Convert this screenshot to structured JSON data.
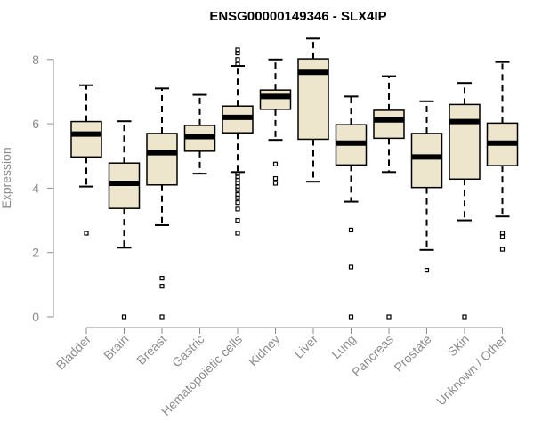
{
  "chart_data": {
    "type": "boxplot",
    "title": "ENSG00000149346 - SLX4IP",
    "ylabel": "Expression",
    "xlabel": "",
    "ylim": [
      0,
      8.8
    ],
    "yticks": [
      0,
      2,
      4,
      6,
      8
    ],
    "grid": false,
    "colors": {
      "box_fill": "#ede6cd",
      "stroke": "#000000",
      "axis": "#8c8c8c"
    },
    "categories": [
      "Bladder",
      "Brain",
      "Breast",
      "Gastric",
      "Hematopoietic cells",
      "Kidney",
      "Liver",
      "Lung",
      "Pancreas",
      "Prostate",
      "Skin",
      "Unknown / Other"
    ],
    "boxes": [
      {
        "whisker_low": 4.05,
        "q1": 4.97,
        "median": 5.68,
        "q3": 6.07,
        "whisker_high": 7.2,
        "outliers": [
          2.6
        ]
      },
      {
        "whisker_low": 2.15,
        "q1": 3.37,
        "median": 4.15,
        "q3": 4.78,
        "whisker_high": 6.08,
        "outliers": [
          0
        ]
      },
      {
        "whisker_low": 2.85,
        "q1": 4.1,
        "median": 5.1,
        "q3": 5.7,
        "whisker_high": 7.1,
        "outliers": [
          1.2,
          0.95,
          0
        ]
      },
      {
        "whisker_low": 4.45,
        "q1": 5.15,
        "median": 5.6,
        "q3": 5.95,
        "whisker_high": 6.9,
        "outliers": []
      },
      {
        "whisker_low": 4.5,
        "q1": 5.72,
        "median": 6.2,
        "q3": 6.55,
        "whisker_high": 7.8,
        "outliers": [
          8.3,
          8.2,
          8.0,
          7.85,
          4.45,
          4.35,
          4.25,
          4.15,
          4.05,
          3.95,
          3.8,
          3.7,
          3.55,
          3.35,
          3.0,
          2.6
        ]
      },
      {
        "whisker_low": 5.5,
        "q1": 6.45,
        "median": 6.85,
        "q3": 7.05,
        "whisker_high": 8.0,
        "outliers": [
          4.75,
          4.3,
          4.15
        ]
      },
      {
        "whisker_low": 4.2,
        "q1": 5.52,
        "median": 7.6,
        "q3": 8.02,
        "whisker_high": 8.65,
        "outliers": []
      },
      {
        "whisker_low": 3.58,
        "q1": 4.72,
        "median": 5.4,
        "q3": 5.97,
        "whisker_high": 6.85,
        "outliers": [
          2.7,
          1.55,
          0
        ]
      },
      {
        "whisker_low": 4.5,
        "q1": 5.55,
        "median": 6.12,
        "q3": 6.42,
        "whisker_high": 7.48,
        "outliers": [
          0
        ]
      },
      {
        "whisker_low": 2.08,
        "q1": 4.02,
        "median": 4.97,
        "q3": 5.7,
        "whisker_high": 6.7,
        "outliers": [
          1.45
        ]
      },
      {
        "whisker_low": 3.0,
        "q1": 4.28,
        "median": 6.07,
        "q3": 6.6,
        "whisker_high": 7.27,
        "outliers": [
          0
        ]
      },
      {
        "whisker_low": 3.12,
        "q1": 4.7,
        "median": 5.4,
        "q3": 6.02,
        "whisker_high": 7.92,
        "outliers": [
          2.6,
          2.5,
          2.1
        ]
      }
    ]
  }
}
